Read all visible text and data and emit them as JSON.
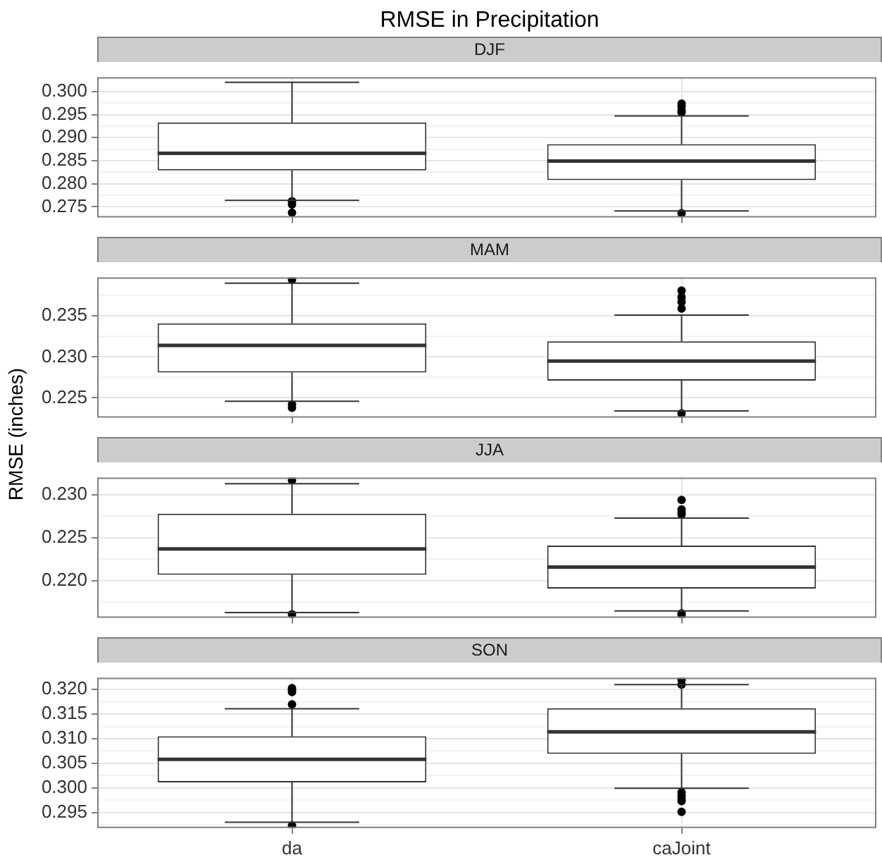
{
  "chart_data": [
    {
      "type": "box",
      "title": "RMSE in Precipitation",
      "subtitle": "DJF",
      "categories": [
        null,
        null
      ],
      "boxes": [
        {
          "low": 0.2764,
          "q1": 0.2829,
          "median": 0.2866,
          "q3": 0.2933,
          "high": 0.302,
          "outliers": [
            0.2762,
            0.2755,
            0.2737
          ]
        },
        {
          "low": 0.2741,
          "q1": 0.2808,
          "median": 0.2849,
          "q3": 0.2886,
          "high": 0.2947,
          "outliers": [
            0.2974,
            0.2968,
            0.2959,
            0.2955,
            0.2736
          ]
        }
      ],
      "ylim": [
        0.2727,
        0.3031
      ],
      "yticks": [
        {
          "value": 0.275,
          "label": "0.275"
        },
        {
          "value": 0.28,
          "label": "0.280"
        },
        {
          "value": 0.285,
          "label": "0.285"
        },
        {
          "value": 0.29,
          "label": "0.290"
        },
        {
          "value": 0.295,
          "label": "0.295"
        },
        {
          "value": 0.3,
          "label": "0.300"
        },
        {
          "value": 0.2775,
          "label": null
        },
        {
          "value": 0.2825,
          "label": null
        },
        {
          "value": 0.2875,
          "label": null
        },
        {
          "value": 0.2925,
          "label": null
        },
        {
          "value": 0.2975,
          "label": null
        }
      ],
      "grid": true,
      "tick_labels": "y"
    },
    {
      "type": "box",
      "subtitle": "MAM",
      "ylabel": "RMSE (inches)",
      "categories": [
        null,
        null
      ],
      "boxes": [
        {
          "low": 0.2246,
          "q1": 0.2281,
          "median": 0.2314,
          "q3": 0.2341,
          "high": 0.239,
          "outliers": [
            0.2394,
            0.2242,
            0.2238
          ]
        },
        {
          "low": 0.2234,
          "q1": 0.2271,
          "median": 0.2295,
          "q3": 0.2319,
          "high": 0.2351,
          "outliers": [
            0.2381,
            0.2373,
            0.2367,
            0.2359,
            0.2231
          ]
        }
      ],
      "ylim": [
        0.2226,
        0.2397
      ],
      "yticks": [
        {
          "value": 0.225,
          "label": "0.225"
        },
        {
          "value": 0.23,
          "label": "0.230"
        },
        {
          "value": 0.235,
          "label": "0.235"
        },
        {
          "value": 0.2275,
          "label": null
        },
        {
          "value": 0.2325,
          "label": null
        },
        {
          "value": 0.2375,
          "label": null
        }
      ],
      "grid": true,
      "tick_labels": "y"
    },
    {
      "type": "box",
      "subtitle": "JJA",
      "categories": [
        null,
        null
      ],
      "boxes": [
        {
          "low": 0.2163,
          "q1": 0.2207,
          "median": 0.2237,
          "q3": 0.2278,
          "high": 0.2313,
          "outliers": [
            0.2317,
            0.2161
          ]
        },
        {
          "low": 0.2165,
          "q1": 0.2191,
          "median": 0.2216,
          "q3": 0.2241,
          "high": 0.2273,
          "outliers": [
            0.2294,
            0.2283,
            0.228,
            0.2277,
            0.2162,
            0.216
          ]
        }
      ],
      "ylim": [
        0.2157,
        0.232
      ],
      "yticks": [
        {
          "value": 0.22,
          "label": "0.220"
        },
        {
          "value": 0.225,
          "label": "0.225"
        },
        {
          "value": 0.23,
          "label": "0.230"
        },
        {
          "value": 0.2175,
          "label": null
        },
        {
          "value": 0.2225,
          "label": null
        },
        {
          "value": 0.2275,
          "label": null
        }
      ],
      "grid": true,
      "tick_labels": "y"
    },
    {
      "type": "box",
      "subtitle": "SON",
      "categories": [
        "da",
        "caJoint"
      ],
      "boxes": [
        {
          "low": 0.293,
          "q1": 0.3011,
          "median": 0.3058,
          "q3": 0.3105,
          "high": 0.3161,
          "outliers": [
            0.3203,
            0.3199,
            0.3195,
            0.317,
            0.2923
          ]
        },
        {
          "low": 0.2999,
          "q1": 0.3069,
          "median": 0.3114,
          "q3": 0.3162,
          "high": 0.321,
          "outliers": [
            0.322,
            0.321,
            0.2991,
            0.2984,
            0.2978,
            0.2973,
            0.2951
          ]
        }
      ],
      "ylim": [
        0.2918,
        0.3224
      ],
      "yticks": [
        {
          "value": 0.295,
          "label": "0.295"
        },
        {
          "value": 0.3,
          "label": "0.300"
        },
        {
          "value": 0.305,
          "label": "0.305"
        },
        {
          "value": 0.31,
          "label": "0.310"
        },
        {
          "value": 0.315,
          "label": "0.315"
        },
        {
          "value": 0.32,
          "label": "0.320"
        },
        {
          "value": 0.2925,
          "label": null
        },
        {
          "value": 0.2975,
          "label": null
        },
        {
          "value": 0.3025,
          "label": null
        },
        {
          "value": 0.3075,
          "label": null
        },
        {
          "value": 0.3125,
          "label": null
        },
        {
          "value": 0.3175,
          "label": null
        }
      ],
      "grid": true
    }
  ]
}
